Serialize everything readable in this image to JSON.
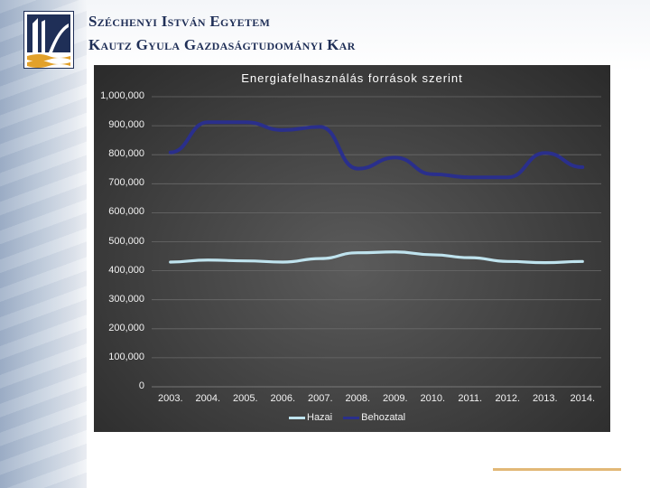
{
  "header": {
    "university": "Széchenyi István Egyetem",
    "faculty": "Kautz Gyula Gazdaságtudományi Kar"
  },
  "chart_data": {
    "type": "line",
    "title": "Energiafelhasználás források szerint",
    "categories": [
      "2003.",
      "2004.",
      "2005.",
      "2006.",
      "2007.",
      "2008.",
      "2009.",
      "2010.",
      "2011.",
      "2012.",
      "2013.",
      "2014."
    ],
    "series": [
      {
        "name": "Hazai",
        "color": "#bfe3ee",
        "values": [
          430000,
          437000,
          434000,
          430000,
          442000,
          462000,
          465000,
          455000,
          445000,
          432000,
          428000,
          432000
        ]
      },
      {
        "name": "Behozatal",
        "color": "#2a2f8c",
        "values": [
          808000,
          912000,
          912000,
          885000,
          896000,
          752000,
          790000,
          733000,
          722000,
          722000,
          806000,
          757000
        ]
      }
    ],
    "yticks": [
      "1,000,000",
      "900,000",
      "800,000",
      "700,000",
      "600,000",
      "500,000",
      "400,000",
      "300,000",
      "200,000",
      "100,000",
      "0"
    ],
    "ylim": [
      0,
      1000000
    ],
    "legend": "bottom",
    "grid": true
  }
}
